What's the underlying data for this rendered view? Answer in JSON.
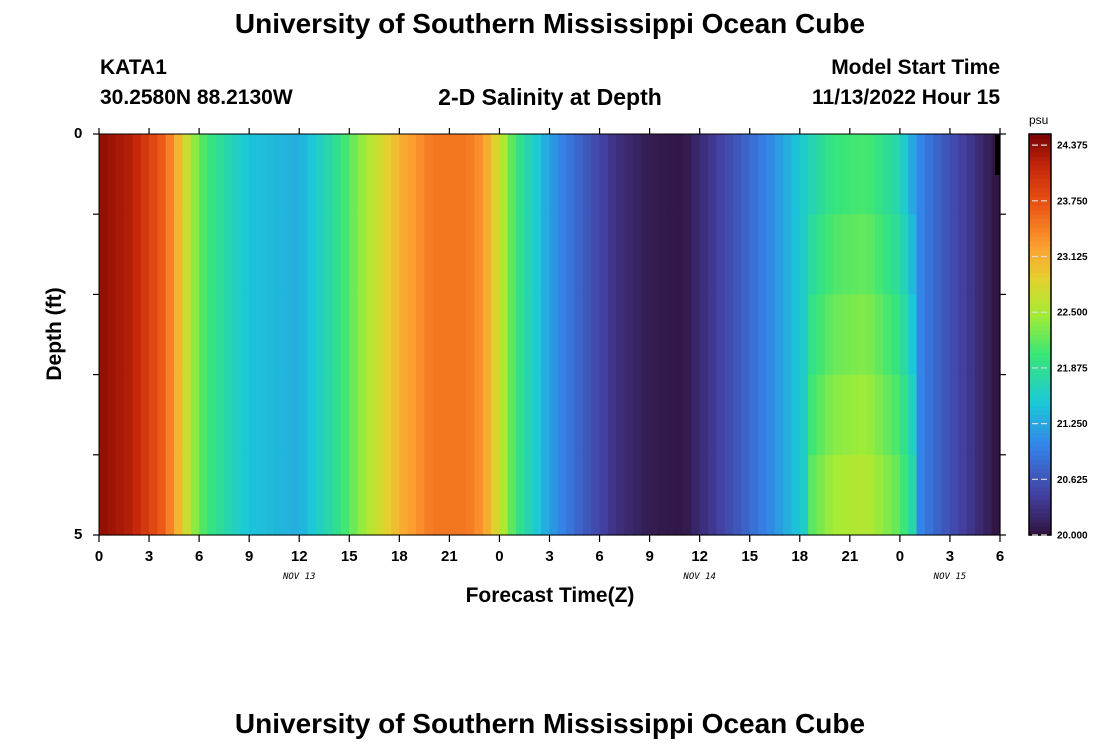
{
  "title_top": "University of Southern Mississippi Ocean Cube",
  "title_bottom": "University of Southern Mississippi Ocean Cube",
  "station": {
    "id": "KATA1",
    "coords": "30.2580N  88.2130W"
  },
  "model": {
    "label": "Model Start Time",
    "datetime": "11/13/2022 Hour 15"
  },
  "chart_data": {
    "type": "heatmap",
    "title": "2-D Salinity at Depth",
    "xlabel": "Forecast Time(Z)",
    "ylabel": "Depth (ft)",
    "x_range_hours": [
      0,
      54
    ],
    "x_tick_labels": [
      "0",
      "3",
      "6",
      "9",
      "12",
      "15",
      "18",
      "21",
      "0",
      "3",
      "6",
      "9",
      "12",
      "15",
      "18",
      "21",
      "0",
      "3",
      "6"
    ],
    "date_labels": [
      {
        "label": "NOV 13",
        "hour": 12
      },
      {
        "label": "NOV 14",
        "hour": 36
      },
      {
        "label": "NOV 15",
        "hour": 51
      }
    ],
    "y_range": [
      0,
      5
    ],
    "y_tick_labels": [
      "0",
      "5"
    ],
    "depth_layers": 5,
    "colorbar": {
      "unit": "psu",
      "min": 20.0,
      "max": 24.5,
      "tick_labels": [
        "24.375",
        "23.750",
        "23.125",
        "22.500",
        "21.875",
        "21.250",
        "20.625",
        "20.000"
      ],
      "tick_values": [
        24.375,
        23.75,
        23.125,
        22.5,
        21.875,
        21.25,
        20.625,
        20.0
      ]
    },
    "salinity_time_series_psu": [
      {
        "hour": 0,
        "value": 24.4
      },
      {
        "hour": 2,
        "value": 24.2
      },
      {
        "hour": 4,
        "value": 23.6
      },
      {
        "hour": 5,
        "value": 22.9
      },
      {
        "hour": 6,
        "value": 22.2
      },
      {
        "hour": 7,
        "value": 21.9
      },
      {
        "hour": 9,
        "value": 21.45
      },
      {
        "hour": 12,
        "value": 21.3
      },
      {
        "hour": 14,
        "value": 21.8
      },
      {
        "hour": 16,
        "value": 22.5
      },
      {
        "hour": 18,
        "value": 23.1
      },
      {
        "hour": 20,
        "value": 23.5
      },
      {
        "hour": 22,
        "value": 23.5
      },
      {
        "hour": 23,
        "value": 23.3
      },
      {
        "hour": 24,
        "value": 22.7
      },
      {
        "hour": 25,
        "value": 22.0
      },
      {
        "hour": 26,
        "value": 21.6
      },
      {
        "hour": 27,
        "value": 21.2
      },
      {
        "hour": 29,
        "value": 20.7
      },
      {
        "hour": 31,
        "value": 20.3
      },
      {
        "hour": 33,
        "value": 20.1
      },
      {
        "hour": 35,
        "value": 20.05
      },
      {
        "hour": 36,
        "value": 20.25
      },
      {
        "hour": 38,
        "value": 20.6
      },
      {
        "hour": 40,
        "value": 21.0
      },
      {
        "hour": 42,
        "value": 21.5
      },
      {
        "hour": 44,
        "value": 22.0
      },
      {
        "hour": 46,
        "value": 22.1
      },
      {
        "hour": 48,
        "value": 21.7
      },
      {
        "hour": 49,
        "value": 21.1
      },
      {
        "hour": 50,
        "value": 20.8
      },
      {
        "hour": 52,
        "value": 20.4
      },
      {
        "hour": 54,
        "value": 20.0
      }
    ]
  }
}
